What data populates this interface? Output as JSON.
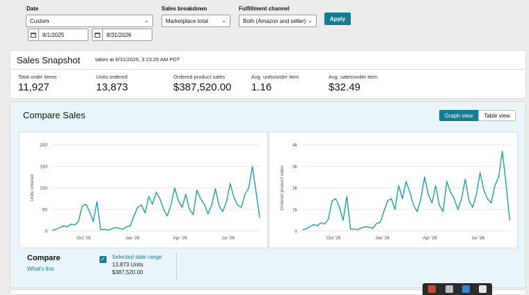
{
  "filters": {
    "date_label": "Date",
    "date_range_value": "Custom",
    "start_date": "8/1/2025",
    "end_date": "8/31/2026",
    "breakdown_label": "Sales breakdown",
    "breakdown_value": "Marketplace total",
    "channel_label": "Fulfillment channel",
    "channel_value": "Both (Amazon and seller)",
    "apply_label": "Apply"
  },
  "snapshot": {
    "title": "Sales Snapshot",
    "taken": "taken at 8/31/2026, 3:23:25 AM PDT",
    "metrics": [
      {
        "label": "Total order items",
        "value": "11,927"
      },
      {
        "label": "Units ordered",
        "value": "13,873"
      },
      {
        "label": "Ordered product sales",
        "value": "$387,520.00"
      },
      {
        "label": "Avg. units/order item",
        "value": "1.16"
      },
      {
        "label": "Avg. sales/order item",
        "value": "$32.49"
      }
    ]
  },
  "compare": {
    "title": "Compare Sales",
    "graph_view_label": "Graph view",
    "table_view_label": "Table view",
    "footer_title": "Compare",
    "whats_this": "What's this",
    "legend_label": "Selected date range",
    "legend_units": "13,873 Units",
    "legend_sales": "$387,520.00"
  },
  "colors": {
    "accent": "#147d96",
    "line": "#1a9fae",
    "panel_bg": "#eaf5fa"
  },
  "icons": [
    "chevron-down-icon",
    "calendar-icon",
    "checkbox-checked-icon"
  ],
  "chart_data": [
    {
      "type": "line",
      "ylabel": "Units ordered",
      "xlabel": "",
      "ylim": [
        0,
        200
      ],
      "yticks": [
        0,
        50,
        100,
        150,
        200
      ],
      "ytick_labels": [
        "0",
        "50",
        "100",
        "150",
        "200"
      ],
      "xticks": [
        "Oct '25",
        "Jan '26",
        "Apr '26",
        "Jul '26"
      ],
      "grid": true,
      "series": [
        {
          "x": [
            "2025-08-03",
            "2025-08-10",
            "2025-08-17",
            "2025-08-24",
            "2025-08-31",
            "2025-09-07",
            "2025-09-14",
            "2025-09-21",
            "2025-09-28",
            "2025-10-05",
            "2025-10-12",
            "2025-10-19",
            "2025-10-26",
            "2025-11-02",
            "2025-11-09",
            "2025-11-16",
            "2025-11-23",
            "2025-11-30",
            "2025-12-07",
            "2025-12-14",
            "2025-12-21",
            "2025-12-28",
            "2026-01-04",
            "2026-01-11",
            "2026-01-18",
            "2026-01-25",
            "2026-02-01",
            "2026-02-08",
            "2026-02-15",
            "2026-02-22",
            "2026-03-01",
            "2026-03-08",
            "2026-03-15",
            "2026-03-22",
            "2026-03-29",
            "2026-04-05",
            "2026-04-12",
            "2026-04-19",
            "2026-04-26",
            "2026-05-03",
            "2026-05-10",
            "2026-05-17",
            "2026-05-24",
            "2026-05-31",
            "2026-06-07",
            "2026-06-14",
            "2026-06-21",
            "2026-06-28",
            "2026-07-05",
            "2026-07-12",
            "2026-07-19",
            "2026-07-26",
            "2026-08-02",
            "2026-08-09",
            "2026-08-16",
            "2026-08-23",
            "2026-08-30"
          ],
          "values": [
            2,
            4,
            8,
            12,
            10,
            16,
            14,
            22,
            58,
            62,
            45,
            22,
            68,
            3,
            4,
            2,
            5,
            8,
            6,
            4,
            10,
            12,
            35,
            55,
            60,
            42,
            80,
            62,
            90,
            75,
            50,
            35,
            60,
            100,
            70,
            55,
            85,
            50,
            38,
            95,
            75,
            62,
            40,
            60,
            98,
            58,
            45,
            68,
            110,
            78,
            60,
            55,
            85,
            100,
            150,
            90,
            30
          ]
        }
      ]
    },
    {
      "type": "line",
      "ylabel": "Ordered product sales",
      "xlabel": "",
      "ylim": [
        0,
        4000
      ],
      "yticks": [
        0,
        1000,
        2000,
        3000,
        4000
      ],
      "ytick_labels": [
        "0",
        "1k",
        "2k",
        "3k",
        "4k"
      ],
      "xticks": [
        "Oct '25",
        "Jan '26",
        "Apr '26",
        "Jul '26"
      ],
      "grid": true,
      "series": [
        {
          "x": [
            "2025-08-03",
            "2025-08-10",
            "2025-08-17",
            "2025-08-24",
            "2025-08-31",
            "2025-09-07",
            "2025-09-14",
            "2025-09-21",
            "2025-09-28",
            "2025-10-05",
            "2025-10-12",
            "2025-10-19",
            "2025-10-26",
            "2025-11-02",
            "2025-11-09",
            "2025-11-16",
            "2025-11-23",
            "2025-11-30",
            "2025-12-07",
            "2025-12-14",
            "2025-12-21",
            "2025-12-28",
            "2026-01-04",
            "2026-01-11",
            "2026-01-18",
            "2026-01-25",
            "2026-02-01",
            "2026-02-08",
            "2026-02-15",
            "2026-02-22",
            "2026-03-01",
            "2026-03-08",
            "2026-03-15",
            "2026-03-22",
            "2026-03-29",
            "2026-04-05",
            "2026-04-12",
            "2026-04-19",
            "2026-04-26",
            "2026-05-03",
            "2026-05-10",
            "2026-05-17",
            "2026-05-24",
            "2026-05-31",
            "2026-06-07",
            "2026-06-14",
            "2026-06-21",
            "2026-06-28",
            "2026-07-05",
            "2026-07-12",
            "2026-07-19",
            "2026-07-26",
            "2026-08-02",
            "2026-08-09",
            "2026-08-16",
            "2026-08-23",
            "2026-08-30"
          ],
          "values": [
            50,
            100,
            200,
            300,
            250,
            380,
            320,
            550,
            1400,
            1500,
            1100,
            500,
            1600,
            80,
            90,
            60,
            150,
            200,
            180,
            120,
            350,
            400,
            900,
            1400,
            1500,
            1000,
            2100,
            1500,
            2300,
            1800,
            1200,
            900,
            1500,
            2500,
            1700,
            1300,
            2100,
            1200,
            900,
            2300,
            1800,
            1500,
            1000,
            1500,
            2400,
            1400,
            1100,
            1700,
            2700,
            1900,
            1500,
            1300,
            2100,
            2500,
            3700,
            2200,
            500
          ]
        }
      ]
    }
  ]
}
